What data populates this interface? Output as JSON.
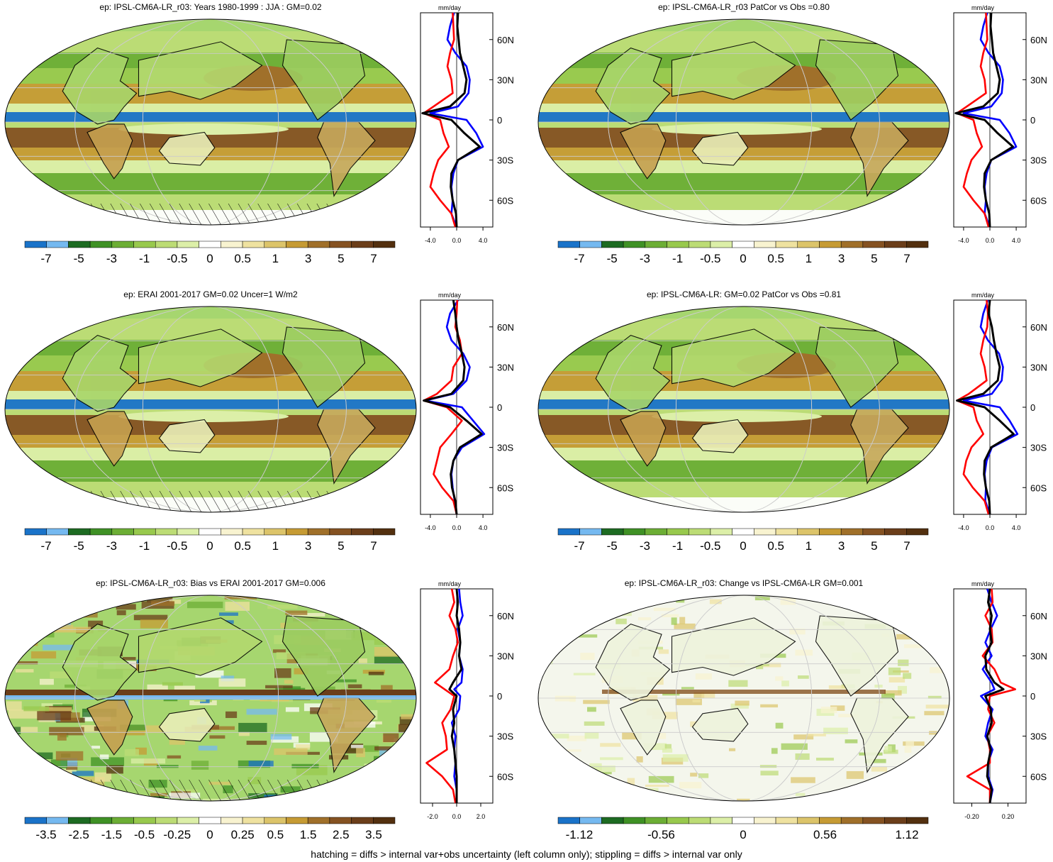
{
  "footnote": "hatching = diffs > internal var+obs uncertainty (left column only); stippling = diffs > internal var only",
  "colors": {
    "scale": [
      "#1a73c9",
      "#75b9f0",
      "#1d6b22",
      "#3f9125",
      "#6cae35",
      "#98c94d",
      "#bcdc75",
      "#dcefa8",
      "#ffffff",
      "#f8f3d0",
      "#efe2a0",
      "#dcc46a",
      "#c69b34",
      "#a0702a",
      "#855222",
      "#6b3e1a",
      "#53300f"
    ],
    "zonal_black": "#000000",
    "zonal_red": "#ff0000",
    "zonal_blue": "#0000ff"
  },
  "panels": [
    {
      "title": "ep: IPSL-CM6A-LR_r03: Years 1980-1999 : JJA : GM=0.02",
      "cb_labels": [
        "-7",
        "-5",
        "-3",
        "-1",
        "-0.5",
        "0",
        "0.5",
        "1",
        "3",
        "5",
        "7"
      ],
      "zonal": {
        "unit": "mm/day",
        "x_ticks": [
          "-4.0",
          "0.0",
          "4.0"
        ],
        "y_ticks": [
          "60N",
          "30N",
          "0",
          "30S",
          "60S"
        ]
      }
    },
    {
      "title": "ep: IPSL-CM6A-LR_r03 PatCor vs Obs =0.80",
      "cb_labels": [
        "-7",
        "-5",
        "-3",
        "-1",
        "-0.5",
        "0",
        "0.5",
        "1",
        "3",
        "5",
        "7"
      ],
      "zonal": {
        "unit": "mm/day",
        "x_ticks": [
          "-4.0",
          "0.0",
          "4.0"
        ],
        "y_ticks": [
          "60N",
          "30N",
          "0",
          "30S",
          "60S"
        ]
      }
    },
    {
      "title": "ep: ERAI 2001-2017 GM=0.02 Uncer=1 W/m2",
      "cb_labels": [
        "-7",
        "-5",
        "-3",
        "-1",
        "-0.5",
        "0",
        "0.5",
        "1",
        "3",
        "5",
        "7"
      ],
      "zonal": {
        "unit": "mm/day",
        "x_ticks": [
          "-4.0",
          "0.0",
          "4.0"
        ],
        "y_ticks": [
          "60N",
          "30N",
          "0",
          "30S",
          "60S"
        ]
      }
    },
    {
      "title": "ep: IPSL-CM6A-LR: GM=0.02 PatCor vs Obs =0.81",
      "cb_labels": [
        "-7",
        "-5",
        "-3",
        "-1",
        "-0.5",
        "0",
        "0.5",
        "1",
        "3",
        "5",
        "7"
      ],
      "zonal": {
        "unit": "mm/day",
        "x_ticks": [
          "-4.0",
          "0.0",
          "4.0"
        ],
        "y_ticks": [
          "60N",
          "30N",
          "0",
          "30S",
          "60S"
        ]
      }
    },
    {
      "title": "ep: IPSL-CM6A-LR_r03: Bias vs ERAI 2001-2017 GM=0.006",
      "cb_labels": [
        "-3.5",
        "-2.5",
        "-1.5",
        "-0.5",
        "-0.25",
        "0",
        "0.25",
        "0.5",
        "1.5",
        "2.5",
        "3.5"
      ],
      "zonal": {
        "unit": "mm/day",
        "x_ticks": [
          "-2.0",
          "0.0",
          "2.0"
        ],
        "y_ticks": [
          "60N",
          "30N",
          "0",
          "30S",
          "60S"
        ]
      }
    },
    {
      "title": "ep: IPSL-CM6A-LR_r03: Change vs IPSL-CM6A-LR GM=0.001",
      "cb_labels": [
        "-1.12",
        "-0.56",
        "0",
        "0.56",
        "1.12"
      ],
      "zonal": {
        "unit": "mm/day",
        "x_ticks": [
          "-0.20",
          "0.20"
        ],
        "y_ticks": [
          "60N",
          "30N",
          "0",
          "30S",
          "60S"
        ]
      }
    }
  ],
  "chart_data": [
    {
      "type": "line",
      "title": "ep: IPSL-CM6A-LR_r03: Years 1980-1999 : JJA : GM=0.02",
      "xlabel": "mm/day",
      "xlim": [
        -5.5,
        5.5
      ],
      "ylim": [
        -80,
        80
      ],
      "y": [
        80,
        70,
        60,
        50,
        40,
        30,
        20,
        10,
        5,
        0,
        -10,
        -20,
        -30,
        -40,
        -50,
        -60,
        -70,
        -80
      ],
      "series": [
        {
          "color": "black",
          "values": [
            0.2,
            0.1,
            0.3,
            0.5,
            1.0,
            1.5,
            1.2,
            -1.0,
            -5.2,
            -0.8,
            1.2,
            3.5,
            0.2,
            -0.8,
            -0.9,
            -0.6,
            -0.1,
            0.0
          ]
        },
        {
          "color": "red",
          "values": [
            -0.6,
            -0.5,
            -0.4,
            -1.0,
            -1.4,
            -0.8,
            -0.6,
            -3.5,
            -5.0,
            -2.5,
            -2.0,
            -1.2,
            -2.8,
            -3.5,
            -4.0,
            -2.5,
            -0.8,
            -0.2
          ]
        },
        {
          "color": "blue",
          "values": [
            -0.4,
            -1.0,
            -1.4,
            -0.2,
            1.5,
            2.0,
            1.8,
            0.2,
            -4.0,
            1.5,
            3.0,
            4.0,
            0.2,
            -0.5,
            -0.8,
            -0.6,
            -0.8,
            0.0
          ]
        }
      ]
    },
    {
      "type": "line",
      "title": "ep: IPSL-CM6A-LR_r03 PatCor vs Obs =0.80",
      "xlabel": "mm/day",
      "xlim": [
        -5.5,
        5.5
      ],
      "ylim": [
        -80,
        80
      ],
      "y": [
        80,
        70,
        60,
        50,
        40,
        30,
        20,
        10,
        5,
        0,
        -10,
        -20,
        -30,
        -40,
        -50,
        -60,
        -70,
        -80
      ],
      "series": [
        {
          "color": "black",
          "values": [
            0.2,
            0.1,
            0.3,
            0.5,
            1.0,
            1.5,
            1.2,
            -1.0,
            -5.2,
            -0.8,
            1.2,
            3.5,
            0.2,
            -0.8,
            -0.9,
            -0.6,
            -0.1,
            0.0
          ]
        },
        {
          "color": "red",
          "values": [
            -0.6,
            -0.5,
            -0.4,
            -1.0,
            -1.4,
            -0.8,
            -0.6,
            -3.5,
            -5.0,
            -2.5,
            -2.0,
            -1.2,
            -2.8,
            -3.5,
            -4.0,
            -2.5,
            -0.8,
            -0.2
          ]
        },
        {
          "color": "blue",
          "values": [
            -0.4,
            -1.0,
            -1.4,
            -0.2,
            1.5,
            2.0,
            1.8,
            0.2,
            -4.0,
            1.5,
            3.0,
            4.0,
            0.2,
            -0.5,
            -0.8,
            -0.6,
            -0.8,
            0.0
          ]
        }
      ]
    },
    {
      "type": "line",
      "title": "ep: ERAI 2001-2017 GM=0.02 Uncer=1 W/m2",
      "xlabel": "mm/day",
      "xlim": [
        -5.5,
        5.5
      ],
      "ylim": [
        -80,
        80
      ],
      "y": [
        80,
        70,
        60,
        50,
        40,
        30,
        20,
        10,
        5,
        0,
        -10,
        -20,
        -30,
        -40,
        -50,
        -60,
        -70,
        -80
      ],
      "series": [
        {
          "color": "black",
          "values": [
            -0.5,
            -0.2,
            0.0,
            0.3,
            0.8,
            1.2,
            1.0,
            -0.8,
            -5.0,
            -1.0,
            1.5,
            3.8,
            0.5,
            -0.5,
            -0.9,
            -0.7,
            -0.2,
            0.0
          ]
        },
        {
          "color": "red",
          "values": [
            0.1,
            0.0,
            -0.2,
            0.5,
            0.8,
            -0.5,
            -0.8,
            -3.0,
            -5.0,
            -1.5,
            0.8,
            -0.8,
            -2.5,
            -3.0,
            -3.5,
            -2.2,
            -0.5,
            0.0
          ]
        },
        {
          "color": "blue",
          "values": [
            0.2,
            -1.0,
            -1.5,
            -0.8,
            1.0,
            2.0,
            1.5,
            -0.5,
            -4.8,
            0.8,
            2.5,
            4.2,
            0.8,
            -0.5,
            -0.8,
            -0.6,
            -0.3,
            0.0
          ]
        }
      ]
    },
    {
      "type": "line",
      "title": "ep: IPSL-CM6A-LR: GM=0.02 PatCor vs Obs =0.81",
      "xlabel": "mm/day",
      "xlim": [
        -5.5,
        5.5
      ],
      "ylim": [
        -80,
        80
      ],
      "y": [
        80,
        70,
        60,
        50,
        40,
        30,
        20,
        10,
        5,
        0,
        -10,
        -20,
        -30,
        -40,
        -50,
        -60,
        -70,
        -80
      ],
      "series": [
        {
          "color": "black",
          "values": [
            0.0,
            -0.2,
            0.3,
            0.6,
            1.0,
            1.5,
            1.2,
            -1.0,
            -5.0,
            -0.8,
            1.5,
            3.6,
            0.2,
            -0.8,
            -0.9,
            -0.6,
            -0.1,
            0.0
          ]
        },
        {
          "color": "red",
          "values": [
            -0.5,
            -0.3,
            -0.4,
            -1.0,
            -1.4,
            -0.8,
            -0.5,
            -3.2,
            -5.0,
            -2.5,
            -2.0,
            -1.0,
            -2.8,
            -3.6,
            -4.0,
            -2.6,
            -0.8,
            -0.2
          ]
        },
        {
          "color": "blue",
          "values": [
            -0.3,
            -1.0,
            -1.4,
            -0.3,
            1.4,
            2.0,
            1.8,
            0.3,
            -4.0,
            1.5,
            3.0,
            4.2,
            0.3,
            -0.5,
            -0.8,
            -0.6,
            -0.7,
            0.0
          ]
        }
      ]
    },
    {
      "type": "line",
      "title": "ep: IPSL-CM6A-LR_r03: Bias vs ERAI 2001-2017 GM=0.006",
      "xlabel": "mm/day",
      "xlim": [
        -3.0,
        3.0
      ],
      "ylim": [
        -80,
        80
      ],
      "y": [
        80,
        70,
        60,
        50,
        40,
        30,
        20,
        10,
        5,
        0,
        -10,
        -20,
        -30,
        -40,
        -50,
        -60,
        -70,
        -80
      ],
      "series": [
        {
          "color": "black",
          "values": [
            0.0,
            0.1,
            0.0,
            0.2,
            0.3,
            0.2,
            0.4,
            -0.3,
            -0.6,
            0.0,
            -0.3,
            -0.2,
            -0.4,
            -0.2,
            -0.1,
            0.0,
            0.0,
            0.0
          ]
        },
        {
          "color": "red",
          "values": [
            -0.4,
            -0.2,
            -0.6,
            -0.1,
            0.1,
            -0.3,
            -0.6,
            -1.8,
            -1.0,
            -0.2,
            -0.5,
            -1.2,
            -0.9,
            -0.8,
            -2.5,
            -1.2,
            -0.3,
            -0.1
          ]
        },
        {
          "color": "blue",
          "values": [
            0.2,
            0.3,
            0.5,
            0.1,
            0.3,
            0.2,
            0.5,
            0.4,
            -0.2,
            0.3,
            0.2,
            -0.4,
            -0.1,
            -0.2,
            -0.1,
            -0.2,
            0.0,
            0.0
          ]
        }
      ]
    },
    {
      "type": "line",
      "title": "ep: IPSL-CM6A-LR_r03: Change vs IPSL-CM6A-LR GM=0.001",
      "xlabel": "mm/day",
      "xlim": [
        -0.4,
        0.4
      ],
      "ylim": [
        -80,
        80
      ],
      "y": [
        80,
        70,
        60,
        50,
        40,
        30,
        20,
        10,
        5,
        0,
        -10,
        -20,
        -30,
        -40,
        -50,
        -60,
        -70,
        -80
      ],
      "series": [
        {
          "color": "black",
          "values": [
            0.0,
            -0.02,
            0.02,
            0.0,
            0.02,
            -0.05,
            -0.04,
            0.05,
            0.15,
            -0.05,
            0.01,
            0.02,
            -0.03,
            0.01,
            -0.02,
            -0.03,
            0.02,
            0.0
          ]
        },
        {
          "color": "red",
          "values": [
            0.02,
            0.03,
            -0.05,
            0.02,
            0.03,
            -0.08,
            0.05,
            0.12,
            0.28,
            0.0,
            -0.02,
            0.05,
            -0.03,
            0.0,
            0.0,
            -0.25,
            0.0,
            0.0
          ]
        },
        {
          "color": "blue",
          "values": [
            -0.03,
            0.02,
            0.08,
            0.01,
            -0.05,
            0.02,
            -0.08,
            0.02,
            0.05,
            -0.1,
            0.03,
            -0.02,
            -0.05,
            0.03,
            -0.02,
            -0.02,
            0.03,
            0.0
          ]
        }
      ]
    }
  ]
}
